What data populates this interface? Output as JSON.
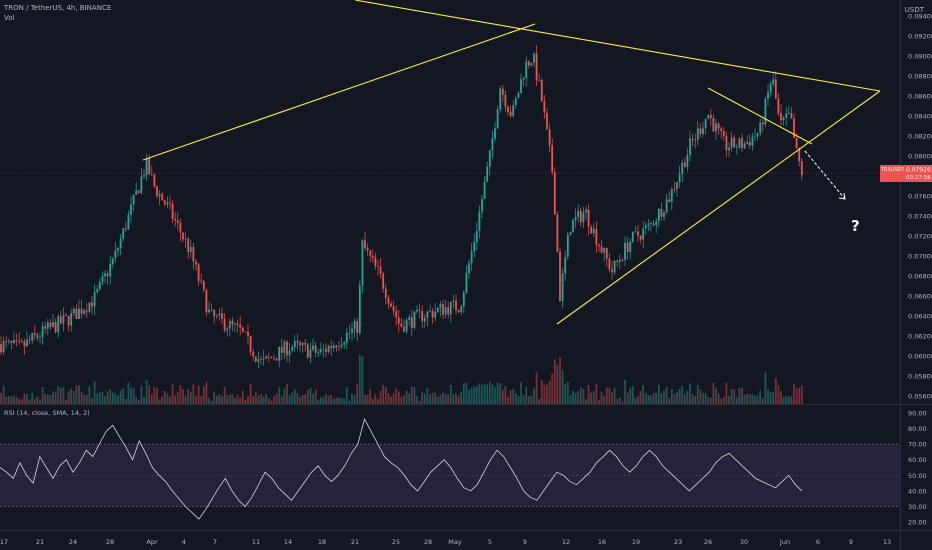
{
  "header": {
    "symbol_line": "TRON / TetherUS, 4h, BINANCE",
    "vol_label": "Vol",
    "unit": "USDT",
    "rsi_label": "RSI (14, close, SMA, 14, 2)"
  },
  "price_tag": {
    "symbol": "TRXUSDT",
    "value": "0.07926",
    "countdown": "03:27:56"
  },
  "annotation": {
    "question_mark": "?"
  },
  "colors": {
    "background": "#131722",
    "up": "#26a69a",
    "down": "#ef5350",
    "trendline": "#ffeb3b",
    "rsi_line": "#d1d4dc",
    "rsi_band": "#2a2540"
  },
  "chart_data": [
    {
      "type": "candlestick",
      "y_ticks": [
        "0.09400",
        "0.09200",
        "0.09000",
        "0.08800",
        "0.08600",
        "0.08400",
        "0.08200",
        "0.08000",
        "0.07800",
        "0.07600",
        "0.07400",
        "0.07200",
        "0.07000",
        "0.06800",
        "0.06600",
        "0.06400",
        "0.06200",
        "0.06000",
        "0.05800",
        "0.05600"
      ],
      "ylim": [
        0.0552,
        0.0956
      ],
      "x_ticks": [
        "17",
        "21",
        "24",
        "28",
        "Apr",
        "4",
        "7",
        "11",
        "14",
        "18",
        "21",
        "25",
        "28",
        "May",
        "5",
        "9",
        "12",
        "16",
        "19",
        "23",
        "26",
        "30",
        "Jun",
        "6",
        "9",
        "13"
      ],
      "price_path": [
        [
          0,
          0.0612
        ],
        [
          20,
          0.0608
        ],
        [
          45,
          0.0625
        ],
        [
          70,
          0.0638
        ],
        [
          95,
          0.0658
        ],
        [
          115,
          0.07
        ],
        [
          135,
          0.0758
        ],
        [
          146,
          0.0792
        ],
        [
          155,
          0.0768
        ],
        [
          170,
          0.0745
        ],
        [
          190,
          0.0705
        ],
        [
          210,
          0.064
        ],
        [
          240,
          0.0625
        ],
        [
          262,
          0.0592
        ],
        [
          290,
          0.061
        ],
        [
          320,
          0.0603
        ],
        [
          345,
          0.062
        ],
        [
          358,
          0.063
        ],
        [
          362,
          0.0712
        ],
        [
          380,
          0.068
        ],
        [
          400,
          0.063
        ],
        [
          420,
          0.064
        ],
        [
          445,
          0.0648
        ],
        [
          460,
          0.065
        ],
        [
          475,
          0.072
        ],
        [
          490,
          0.08
        ],
        [
          500,
          0.087
        ],
        [
          512,
          0.084
        ],
        [
          525,
          0.089
        ],
        [
          533,
          0.09
        ],
        [
          542,
          0.0855
        ],
        [
          553,
          0.078
        ],
        [
          560,
          0.066
        ],
        [
          570,
          0.073
        ],
        [
          585,
          0.0745
        ],
        [
          600,
          0.071
        ],
        [
          612,
          0.0685
        ],
        [
          630,
          0.0715
        ],
        [
          650,
          0.073
        ],
        [
          670,
          0.076
        ],
        [
          690,
          0.081
        ],
        [
          708,
          0.0842
        ],
        [
          725,
          0.081
        ],
        [
          745,
          0.0812
        ],
        [
          760,
          0.0825
        ],
        [
          772,
          0.088
        ],
        [
          780,
          0.083
        ],
        [
          790,
          0.084
        ],
        [
          797,
          0.08
        ],
        [
          802,
          0.0783
        ]
      ],
      "trendlines": [
        {
          "from": [
            143,
            0.0796
          ],
          "to": [
            535,
            0.0932
          ]
        },
        {
          "from": [
            355,
            0.0956
          ],
          "to": [
            880,
            0.0865
          ]
        },
        {
          "from": [
            557,
            0.0632
          ],
          "to": [
            880,
            0.0865
          ]
        },
        {
          "from": [
            708,
            0.0868
          ],
          "to": [
            812,
            0.0812
          ]
        }
      ],
      "projection": {
        "from": [
          805,
          0.0805
        ],
        "to": [
          845,
          0.0757
        ]
      }
    },
    {
      "type": "line",
      "name": "RSI",
      "y_ticks": [
        "90.00",
        "80.00",
        "70.00",
        "60.00",
        "50.00",
        "40.00",
        "30.00",
        "20.00"
      ],
      "ylim": [
        15,
        95
      ],
      "band": [
        30,
        70
      ],
      "values": [
        55,
        52,
        48,
        58,
        50,
        45,
        62,
        55,
        48,
        56,
        60,
        52,
        58,
        66,
        62,
        70,
        78,
        82,
        75,
        68,
        60,
        72,
        64,
        55,
        50,
        46,
        40,
        35,
        30,
        26,
        22,
        28,
        35,
        42,
        48,
        40,
        34,
        30,
        36,
        44,
        52,
        48,
        42,
        38,
        34,
        40,
        46,
        52,
        56,
        50,
        46,
        50,
        56,
        64,
        70,
        86,
        78,
        70,
        62,
        58,
        55,
        50,
        44,
        40,
        46,
        52,
        56,
        60,
        55,
        48,
        42,
        40,
        44,
        52,
        60,
        66,
        62,
        55,
        48,
        40,
        36,
        34,
        40,
        46,
        52,
        50,
        46,
        44,
        48,
        52,
        58,
        62,
        66,
        62,
        56,
        52,
        56,
        62,
        66,
        62,
        56,
        52,
        48,
        44,
        40,
        44,
        48,
        52,
        58,
        62,
        64,
        60,
        56,
        52,
        48,
        46,
        44,
        42,
        46,
        50,
        44,
        40
      ]
    }
  ]
}
